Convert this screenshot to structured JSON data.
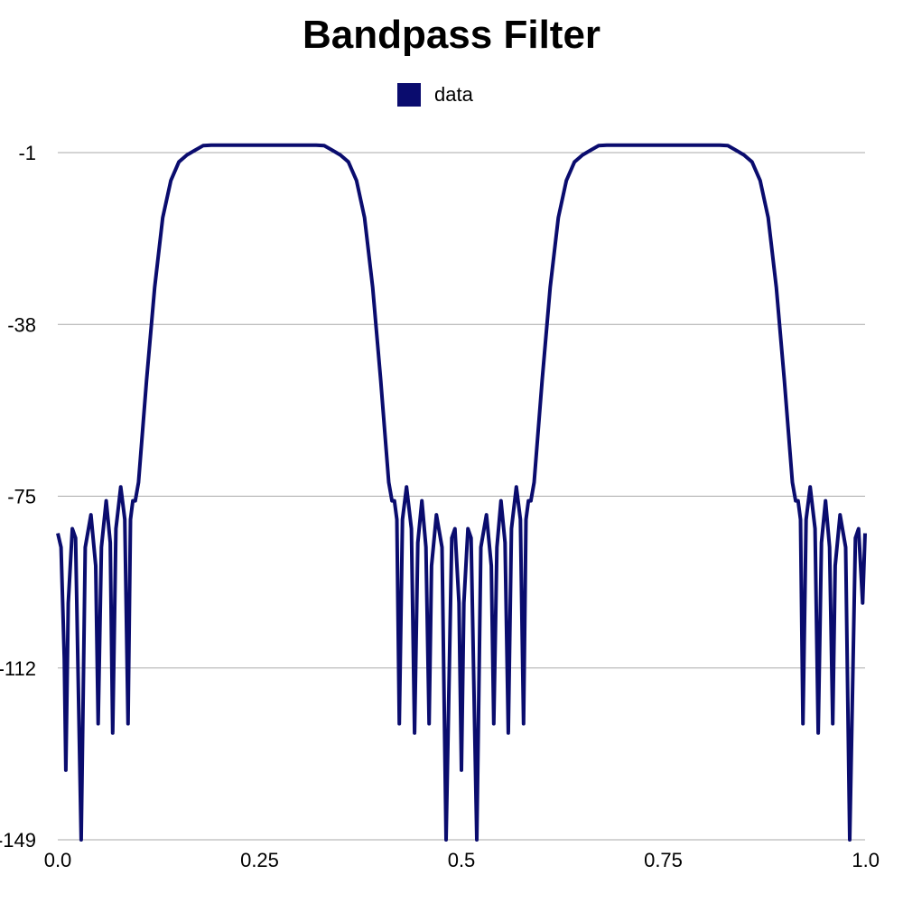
{
  "chart_data": {
    "type": "line",
    "title": "Bandpass Filter",
    "xlabel": "",
    "ylabel": "",
    "xlim": [
      0.0,
      1.0
    ],
    "ylim": [
      -149,
      0.6
    ],
    "x_ticks": [
      0.0,
      0.25,
      0.5,
      0.75,
      1.0
    ],
    "x_tick_labels": [
      "0.0",
      "0.25",
      "0.5",
      "0.75",
      "1.0"
    ],
    "y_ticks": [
      -1,
      -38,
      -75,
      -112,
      -149
    ],
    "y_tick_labels": [
      "-1",
      "-38",
      "-75",
      "-112",
      "-149"
    ],
    "grid": "horizontal",
    "legend_position": "top-center",
    "colors": {
      "series": "#0a0c6e",
      "grid": "#aaaaaa",
      "background": "#ffffff"
    },
    "series": [
      {
        "name": "data",
        "description_points": [
          [
            0.0,
            -83
          ],
          [
            0.004,
            -86
          ],
          [
            0.008,
            -110
          ],
          [
            0.01,
            -134
          ],
          [
            0.013,
            -98
          ],
          [
            0.018,
            -82
          ],
          [
            0.022,
            -84
          ],
          [
            0.029,
            -149
          ],
          [
            0.034,
            -86
          ],
          [
            0.041,
            -79
          ],
          [
            0.047,
            -90
          ],
          [
            0.05,
            -124
          ],
          [
            0.054,
            -86
          ],
          [
            0.06,
            -76
          ],
          [
            0.065,
            -85
          ],
          [
            0.068,
            -126
          ],
          [
            0.072,
            -82
          ],
          [
            0.078,
            -73
          ],
          [
            0.083,
            -80
          ],
          [
            0.087,
            -124
          ],
          [
            0.09,
            -80
          ],
          [
            0.093,
            -76
          ],
          [
            0.096,
            -76
          ],
          [
            0.1,
            -72
          ],
          [
            0.11,
            -50
          ],
          [
            0.12,
            -30
          ],
          [
            0.13,
            -15
          ],
          [
            0.14,
            -7
          ],
          [
            0.15,
            -3
          ],
          [
            0.16,
            -1.5
          ],
          [
            0.17,
            -0.5
          ],
          [
            0.18,
            0.5
          ],
          [
            0.19,
            0.6
          ],
          [
            0.32,
            0.6
          ],
          [
            0.33,
            0.5
          ],
          [
            0.34,
            -0.5
          ],
          [
            0.35,
            -1.5
          ],
          [
            0.36,
            -3
          ],
          [
            0.37,
            -7
          ],
          [
            0.38,
            -15
          ],
          [
            0.39,
            -30
          ],
          [
            0.4,
            -50
          ],
          [
            0.41,
            -72
          ],
          [
            0.414,
            -76
          ],
          [
            0.417,
            -76
          ],
          [
            0.42,
            -80
          ],
          [
            0.423,
            -124
          ],
          [
            0.427,
            -80
          ],
          [
            0.432,
            -73
          ],
          [
            0.438,
            -82
          ],
          [
            0.442,
            -126
          ],
          [
            0.446,
            -85
          ],
          [
            0.451,
            -76
          ],
          [
            0.456,
            -86
          ],
          [
            0.46,
            -124
          ],
          [
            0.463,
            -90
          ],
          [
            0.469,
            -79
          ],
          [
            0.476,
            -86
          ],
          [
            0.481,
            -149
          ],
          [
            0.488,
            -84
          ],
          [
            0.492,
            -82
          ],
          [
            0.497,
            -98
          ],
          [
            0.5,
            -134
          ],
          [
            0.503,
            -98
          ],
          [
            0.508,
            -82
          ],
          [
            0.512,
            -84
          ],
          [
            0.519,
            -149
          ],
          [
            0.524,
            -86
          ],
          [
            0.531,
            -79
          ],
          [
            0.537,
            -90
          ],
          [
            0.54,
            -124
          ],
          [
            0.544,
            -86
          ],
          [
            0.549,
            -76
          ],
          [
            0.554,
            -85
          ],
          [
            0.558,
            -126
          ],
          [
            0.562,
            -82
          ],
          [
            0.568,
            -73
          ],
          [
            0.573,
            -80
          ],
          [
            0.577,
            -124
          ],
          [
            0.58,
            -80
          ],
          [
            0.583,
            -76
          ],
          [
            0.586,
            -76
          ],
          [
            0.59,
            -72
          ],
          [
            0.6,
            -50
          ],
          [
            0.61,
            -30
          ],
          [
            0.62,
            -15
          ],
          [
            0.63,
            -7
          ],
          [
            0.64,
            -3
          ],
          [
            0.65,
            -1.5
          ],
          [
            0.66,
            -0.5
          ],
          [
            0.67,
            0.5
          ],
          [
            0.68,
            0.6
          ],
          [
            0.82,
            0.6
          ],
          [
            0.83,
            0.5
          ],
          [
            0.84,
            -0.5
          ],
          [
            0.85,
            -1.5
          ],
          [
            0.86,
            -3
          ],
          [
            0.87,
            -7
          ],
          [
            0.88,
            -15
          ],
          [
            0.89,
            -30
          ],
          [
            0.9,
            -50
          ],
          [
            0.91,
            -72
          ],
          [
            0.914,
            -76
          ],
          [
            0.917,
            -76
          ],
          [
            0.92,
            -80
          ],
          [
            0.923,
            -124
          ],
          [
            0.927,
            -80
          ],
          [
            0.932,
            -73
          ],
          [
            0.938,
            -82
          ],
          [
            0.942,
            -126
          ],
          [
            0.946,
            -85
          ],
          [
            0.951,
            -76
          ],
          [
            0.956,
            -86
          ],
          [
            0.96,
            -124
          ],
          [
            0.963,
            -90
          ],
          [
            0.969,
            -79
          ],
          [
            0.976,
            -86
          ],
          [
            0.981,
            -149
          ],
          [
            0.988,
            -84
          ],
          [
            0.992,
            -82
          ],
          [
            0.997,
            -98
          ],
          [
            1.0,
            -83
          ]
        ]
      }
    ]
  }
}
